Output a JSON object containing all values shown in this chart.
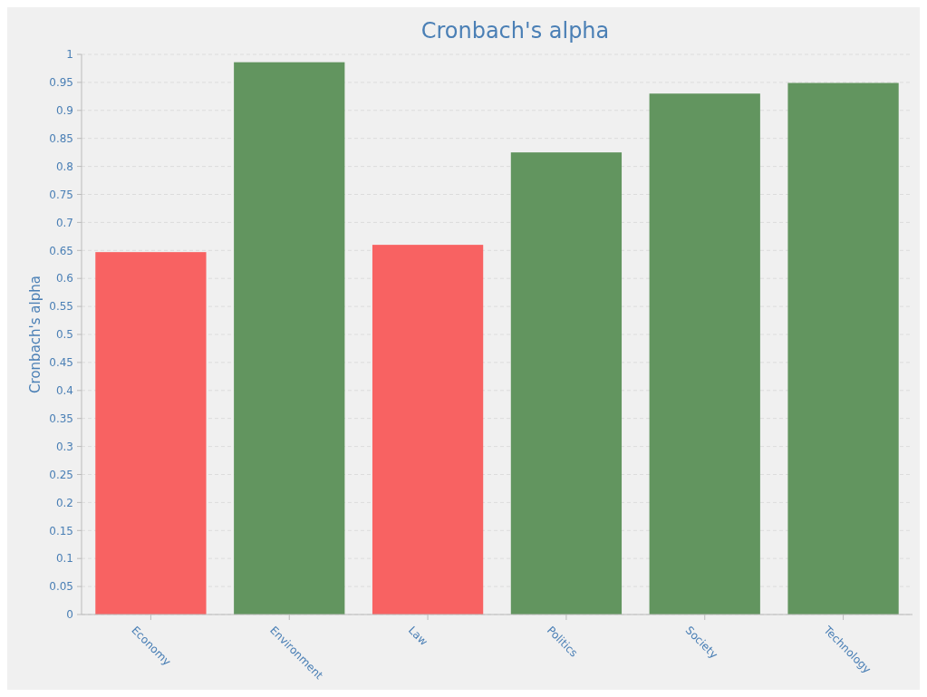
{
  "chart_data": {
    "type": "bar",
    "title": "Cronbach's alpha",
    "ylabel": "Cronbach's alpha",
    "categories": [
      "Economy",
      "Environment",
      "Law",
      "Politics",
      "Society",
      "Technology"
    ],
    "values": [
      0.647,
      0.986,
      0.66,
      0.825,
      0.93,
      0.949
    ],
    "colors": [
      "#f86262",
      "#62955f",
      "#f86262",
      "#62955f",
      "#62955f",
      "#62955f"
    ],
    "ylim": [
      0,
      1
    ],
    "yticks": [
      0,
      0.05,
      0.1,
      0.15,
      0.2,
      0.25,
      0.3,
      0.35,
      0.4,
      0.45,
      0.5,
      0.55,
      0.6,
      0.65,
      0.7,
      0.75,
      0.8,
      0.85,
      0.9,
      0.95,
      1
    ],
    "grid": "y"
  }
}
